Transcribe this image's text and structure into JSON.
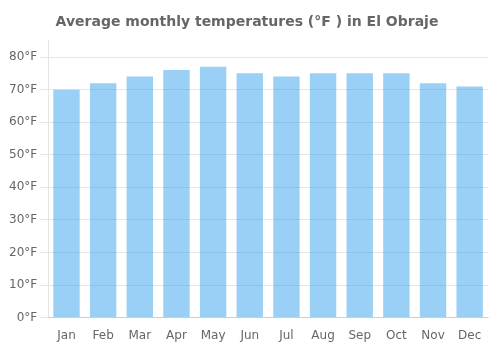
{
  "chart_data": {
    "type": "bar",
    "title": "Average monthly temperatures (°F ) in El Obraje",
    "categories": [
      "Jan",
      "Feb",
      "Mar",
      "Apr",
      "May",
      "Jun",
      "Jul",
      "Aug",
      "Sep",
      "Oct",
      "Nov",
      "Dec"
    ],
    "values": [
      70,
      72,
      74,
      76,
      77,
      75,
      74,
      75,
      75,
      75,
      72,
      71
    ],
    "ylim": [
      0,
      85
    ],
    "yticks": [
      {
        "value": 0,
        "label": "0°F"
      },
      {
        "value": 10,
        "label": "10°F"
      },
      {
        "value": 20,
        "label": "20°F"
      },
      {
        "value": 30,
        "label": "30°F"
      },
      {
        "value": 40,
        "label": "40°F"
      },
      {
        "value": 50,
        "label": "50°F"
      },
      {
        "value": 60,
        "label": "60°F"
      },
      {
        "value": 70,
        "label": "70°F"
      },
      {
        "value": 80,
        "label": "80°F"
      }
    ],
    "grid": true
  }
}
